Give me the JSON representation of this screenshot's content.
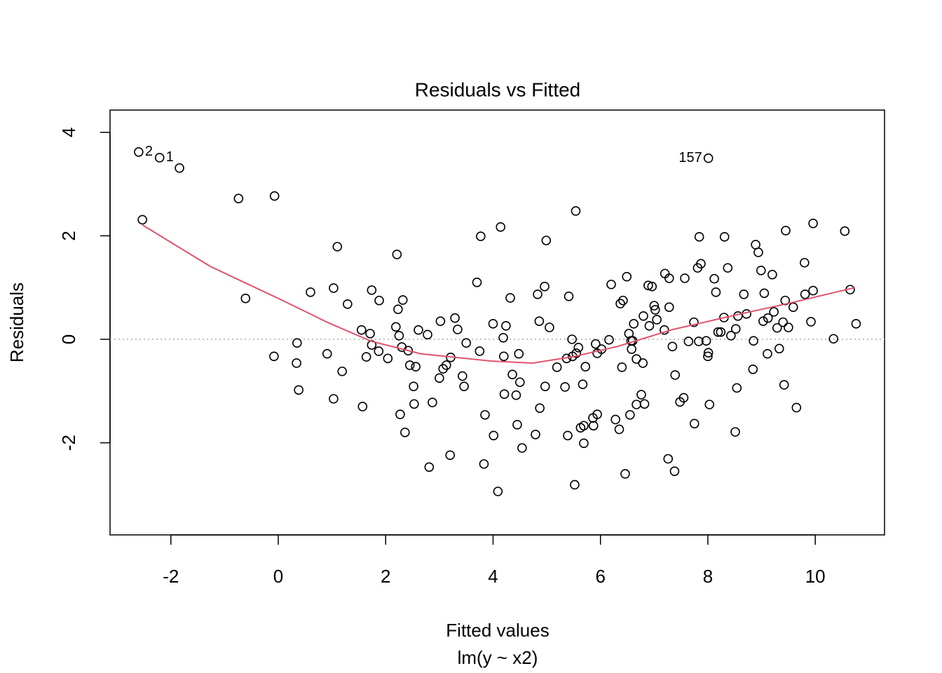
{
  "chart_data": {
    "type": "scatter",
    "title": "Residuals vs Fitted",
    "x_label": "Fitted values",
    "subtitle": "lm(y ~ x2)",
    "y_label": "Residuals",
    "xlim": [
      -3.133,
      11.29
    ],
    "ylim": [
      -3.78,
      4.43
    ],
    "xticks": [
      -2,
      0,
      2,
      4,
      6,
      8,
      10
    ],
    "yticks": [
      -2,
      0,
      2,
      4
    ],
    "hline": 0,
    "series": [
      {
        "name": "residuals",
        "color": "#000000",
        "x": [
          -2.6,
          -2.21,
          -1.84,
          -2.53,
          -0.74,
          -0.07,
          -0.61,
          -0.08,
          0.35,
          0.34,
          0.38,
          0.6,
          0.91,
          1.03,
          1.03,
          1.1,
          1.19,
          1.29,
          1.55,
          1.57,
          1.64,
          1.71,
          1.74,
          1.74,
          1.87,
          1.88,
          2.04,
          2.19,
          2.21,
          2.23,
          2.25,
          2.27,
          2.3,
          2.32,
          2.36,
          2.42,
          2.45,
          2.52,
          2.53,
          2.56,
          2.61,
          2.78,
          2.81,
          2.87,
          3.0,
          3.02,
          3.07,
          3.13,
          3.21,
          3.2,
          3.29,
          3.34,
          3.43,
          3.46,
          3.5,
          3.7,
          3.75,
          3.77,
          3.83,
          3.85,
          4.0,
          4.01,
          4.09,
          4.14,
          4.19,
          4.2,
          4.21,
          4.24,
          4.32,
          4.36,
          4.43,
          4.45,
          4.48,
          4.5,
          4.54,
          4.79,
          4.83,
          4.86,
          4.87,
          4.96,
          4.99,
          4.97,
          5.05,
          5.19,
          5.34,
          5.37,
          5.39,
          5.41,
          5.47,
          5.48,
          5.52,
          5.54,
          5.55,
          5.59,
          5.63,
          5.67,
          5.69,
          5.69,
          5.72,
          5.86,
          5.87,
          5.91,
          5.94,
          5.94,
          6.02,
          6.16,
          6.2,
          6.28,
          6.35,
          6.37,
          6.4,
          6.42,
          6.46,
          6.49,
          6.53,
          6.55,
          6.57,
          6.58,
          6.6,
          6.62,
          6.67,
          6.67,
          6.76,
          6.79,
          6.8,
          6.82,
          6.89,
          6.91,
          6.96,
          7.0,
          7.02,
          7.05,
          7.19,
          7.2,
          7.26,
          7.28,
          7.28,
          7.34,
          7.38,
          7.39,
          7.48,
          7.55,
          7.57,
          7.64,
          7.74,
          7.75,
          7.81,
          7.83,
          7.84,
          7.87,
          7.97,
          8.0,
          8.01,
          8.01,
          8.03,
          8.12,
          8.15,
          8.19,
          8.24,
          8.3,
          8.31,
          8.37,
          8.43,
          8.51,
          8.52,
          8.54,
          8.56,
          8.67,
          8.72,
          8.84,
          8.85,
          8.89,
          8.94,
          8.99,
          9.03,
          9.05,
          9.11,
          9.12,
          9.2,
          9.23,
          9.29,
          9.33,
          9.4,
          9.42,
          9.44,
          9.45,
          9.5,
          9.59,
          9.65,
          9.8,
          9.81,
          9.92,
          9.96,
          9.96,
          10.34,
          10.55,
          10.65,
          10.76
        ],
        "values": [
          3.62,
          3.51,
          3.31,
          2.31,
          2.72,
          2.77,
          0.79,
          -0.33,
          -0.07,
          -0.46,
          -0.98,
          0.91,
          -0.28,
          0.99,
          -1.15,
          1.79,
          -0.62,
          0.68,
          0.18,
          -1.3,
          -0.34,
          0.11,
          0.95,
          -0.11,
          -0.23,
          0.75,
          -0.37,
          0.24,
          1.64,
          0.58,
          0.07,
          -1.45,
          -0.15,
          0.76,
          -1.8,
          -0.22,
          -0.5,
          -0.91,
          -1.25,
          -0.53,
          0.18,
          0.09,
          -2.47,
          -1.22,
          -0.75,
          0.35,
          -0.57,
          -0.5,
          -0.35,
          -2.24,
          0.41,
          0.19,
          -0.71,
          -0.91,
          -0.07,
          1.1,
          -0.23,
          1.99,
          -2.41,
          -1.46,
          0.3,
          -1.86,
          -2.94,
          2.17,
          0.03,
          -0.33,
          -1.06,
          0.26,
          0.8,
          -0.68,
          -1.08,
          -1.65,
          -0.28,
          -0.83,
          -2.1,
          -1.84,
          0.87,
          0.35,
          -1.33,
          1.02,
          1.91,
          -0.91,
          0.23,
          -0.54,
          -0.92,
          -0.37,
          -1.86,
          0.83,
          0.0,
          -0.33,
          -2.81,
          2.48,
          -0.27,
          -0.16,
          -1.71,
          -0.87,
          -2.01,
          -1.67,
          -0.53,
          -1.52,
          -1.67,
          -0.09,
          -1.45,
          -0.27,
          -0.19,
          -0.01,
          1.06,
          -1.55,
          -1.74,
          0.69,
          -0.54,
          0.75,
          -2.6,
          1.21,
          0.11,
          -1.46,
          -0.03,
          -0.19,
          -0.03,
          0.3,
          -0.38,
          -1.26,
          -1.07,
          -0.46,
          0.45,
          -1.25,
          1.04,
          0.26,
          1.02,
          0.65,
          0.57,
          0.38,
          0.18,
          1.27,
          -2.31,
          1.18,
          0.62,
          -0.14,
          -2.55,
          -0.69,
          -1.21,
          -1.13,
          1.18,
          -0.04,
          0.33,
          -1.63,
          1.38,
          -0.04,
          1.98,
          1.46,
          -0.03,
          -0.33,
          -0.26,
          3.5,
          -1.26,
          1.17,
          0.91,
          0.14,
          0.14,
          0.42,
          1.98,
          1.38,
          0.07,
          -1.79,
          0.2,
          -0.94,
          0.45,
          0.87,
          0.49,
          -0.58,
          -0.03,
          1.83,
          1.68,
          1.33,
          0.35,
          0.89,
          -0.28,
          0.41,
          1.25,
          0.53,
          0.22,
          -0.18,
          0.33,
          -0.88,
          0.75,
          2.1,
          0.23,
          0.62,
          -1.32,
          1.48,
          0.87,
          0.34,
          0.94,
          2.24,
          0.01,
          2.09,
          0.96,
          0.3
        ]
      },
      {
        "name": "smoother",
        "type": "line",
        "color": "#DF536B",
        "x": [
          -2.53,
          -1.27,
          0.04,
          0.95,
          1.74,
          2.65,
          3.96,
          4.74,
          5.52,
          6.31,
          7.35,
          8.52,
          9.57,
          10.74
        ],
        "values": [
          2.21,
          1.41,
          0.77,
          0.31,
          -0.04,
          -0.28,
          -0.42,
          -0.46,
          -0.33,
          -0.14,
          0.19,
          0.47,
          0.71,
          1.0
        ]
      }
    ],
    "annotations": [
      {
        "text": "2",
        "x": -2.6,
        "y": 3.62
      },
      {
        "text": "1",
        "x": -2.21,
        "y": 3.51
      },
      {
        "text": "157",
        "x": 8.01,
        "y": 3.5
      }
    ]
  }
}
